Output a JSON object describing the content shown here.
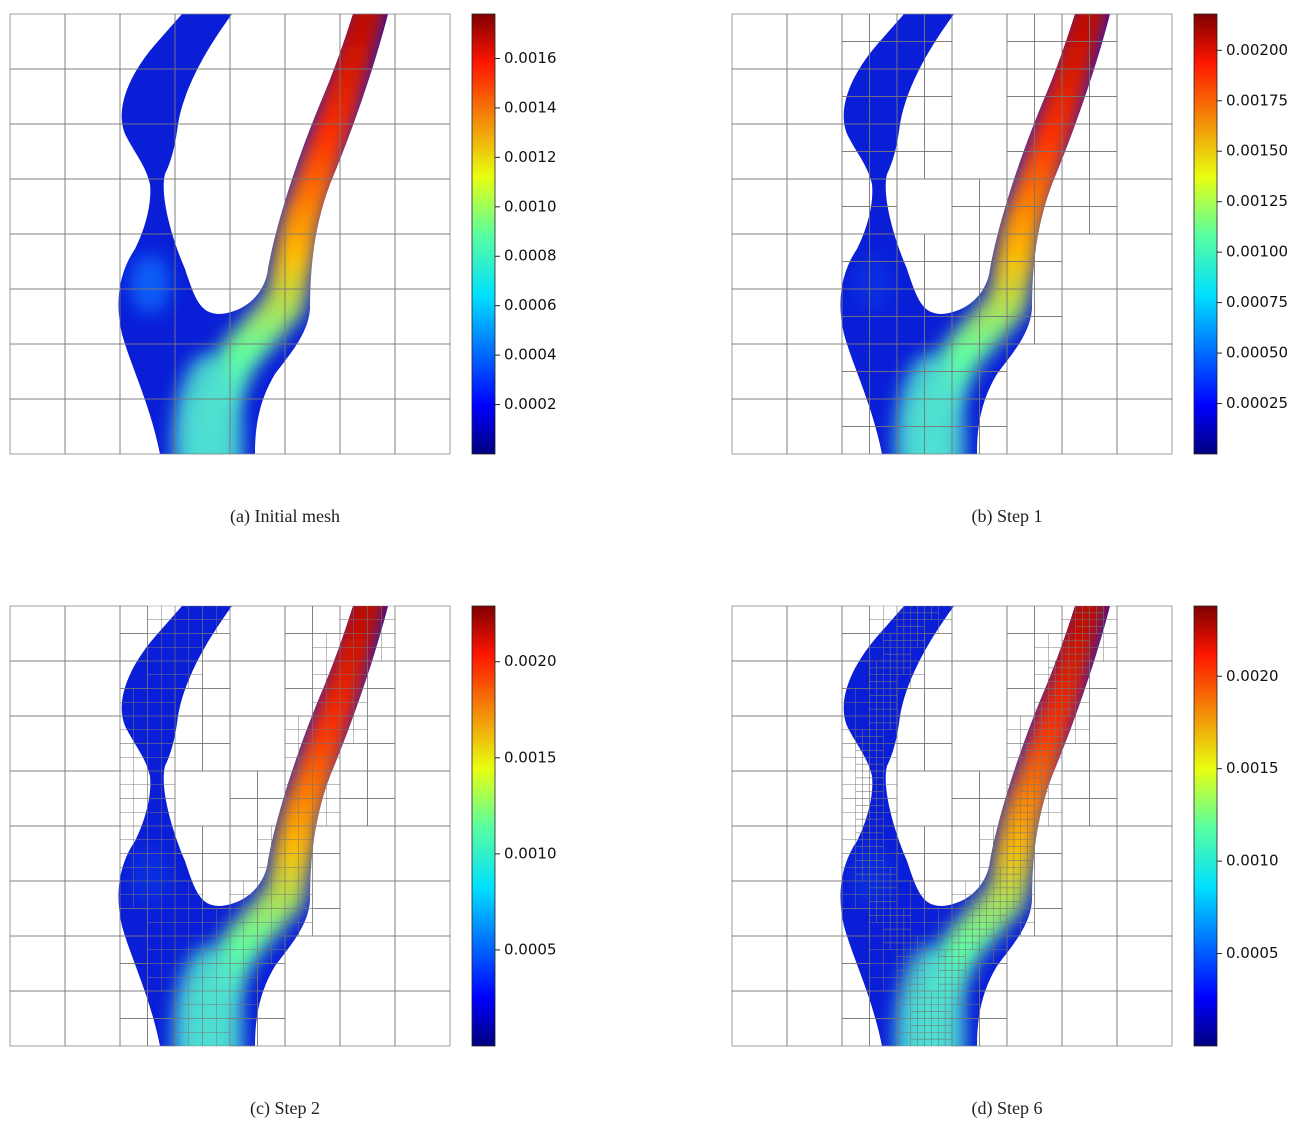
{
  "chart_data": [
    {
      "type": "field",
      "caption": "(a) Initial mesh",
      "colormap": "jet",
      "ylim": [
        0,
        0.00178
      ],
      "yticks": [
        0.0002,
        0.0004,
        0.0006,
        0.0008,
        {
          "value": 0.001,
          "label": "0.0010"
        },
        0.0012,
        0.0014,
        0.0016
      ]
    },
    {
      "type": "field",
      "caption": "(b) Step 1",
      "colormap": "jet",
      "ylim": [
        0,
        0.00218
      ],
      "yticks": [
        0.00025,
        {
          "value": 0.0005,
          "label": "0.00050"
        },
        0.00075,
        {
          "value": 0.001,
          "label": "0.00100"
        },
        0.00125,
        {
          "value": 0.0015,
          "label": "0.00150"
        },
        0.00175,
        {
          "value": 0.002,
          "label": "0.00200"
        }
      ]
    },
    {
      "type": "field",
      "caption": "(c) Step 2",
      "colormap": "jet",
      "ylim": [
        0,
        0.00229
      ],
      "yticks": [
        0.0005,
        {
          "value": 0.001,
          "label": "0.0010"
        },
        0.0015,
        {
          "value": 0.002,
          "label": "0.0020"
        }
      ]
    },
    {
      "type": "field",
      "caption": "(d) Step 6",
      "colormap": "jet",
      "ylim": [
        0,
        0.00238
      ],
      "yticks": [
        0.0005,
        {
          "value": 0.001,
          "label": "0.0010"
        },
        0.0015,
        {
          "value": 0.002,
          "label": "0.0020"
        }
      ]
    }
  ]
}
